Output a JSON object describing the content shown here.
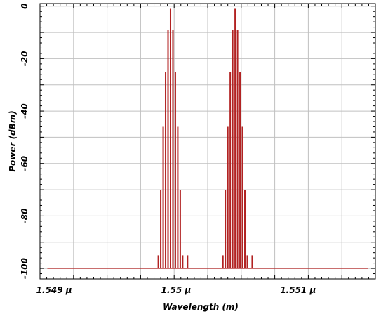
{
  "chart_data": {
    "type": "line",
    "title": "",
    "xlabel": "Wavelength (m)",
    "ylabel": "Power (dBm)",
    "xlim": [
      1.54893,
      1.55168
    ],
    "ylim": [
      -104,
      1
    ],
    "x_unit": "μm",
    "grid": true,
    "legend": "none",
    "x_ticks": [
      {
        "value": 1.549,
        "label": "1.549 μ"
      },
      {
        "value": 1.55,
        "label": "1.55 μ"
      },
      {
        "value": 1.551,
        "label": "1.551 μ"
      }
    ],
    "y_ticks": [
      0,
      -20,
      -40,
      -60,
      -80,
      -100
    ],
    "noise_floor": -100,
    "noise_floor_range": [
      1.54899,
      1.55162
    ],
    "series": [
      {
        "color": "#b22222",
        "x": [
          1.5499,
          1.54992,
          1.54994,
          1.54996,
          1.54998,
          1.55,
          1.55002,
          1.55004,
          1.55006,
          1.55008,
          1.5501,
          1.55012,
          1.55014,
          1.55043,
          1.55045,
          1.55047,
          1.55049,
          1.55051,
          1.55053,
          1.55055,
          1.55057,
          1.55059,
          1.55061,
          1.55063,
          1.55065,
          1.55067
        ],
        "y": [
          -95,
          -70,
          -46,
          -25,
          -9,
          -1,
          -9,
          -25,
          -46,
          -70,
          -95,
          -100,
          -95,
          -95,
          -70,
          -46,
          -25,
          -9,
          -1,
          -9,
          -25,
          -46,
          -70,
          -95,
          -100,
          -95
        ]
      }
    ]
  },
  "colors": {
    "trace": "#b22222",
    "grid": "#c0c0c0",
    "frame": "#000000",
    "background": "#ffffff"
  }
}
